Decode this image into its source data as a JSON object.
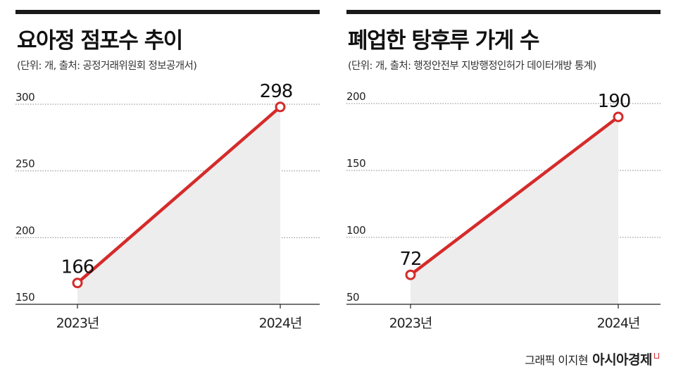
{
  "charts": [
    {
      "title": "요아정 점포수 추이",
      "subtitle": "(단위: 개, 출처: 공정거래위원회 정보공개서)"
    },
    {
      "title": "폐업한 탕후루 가게 수",
      "subtitle": "(단위: 개, 출처: 행정안전부 지방행정인허가 데이터개방 통계)"
    }
  ],
  "credit": {
    "author": "그래픽 이지현",
    "brand": "아시아경제"
  },
  "colors": {
    "line": "#d52b2b",
    "fill": "#ededed",
    "grid": "#888888",
    "bar": "#1a1a1a"
  },
  "chart_data": [
    {
      "type": "area",
      "title": "요아정 점포수 추이",
      "categories": [
        "2023년",
        "2024년"
      ],
      "values": [
        166,
        298
      ],
      "data_labels": [
        "166",
        "298"
      ],
      "yticks": [
        150,
        200,
        250,
        300
      ],
      "ylim": [
        150,
        300
      ],
      "grid": true
    },
    {
      "type": "area",
      "title": "폐업한 탕후루 가게 수",
      "categories": [
        "2023년",
        "2024년"
      ],
      "values": [
        72,
        190
      ],
      "data_labels": [
        "72",
        "190"
      ],
      "yticks": [
        50,
        100,
        150,
        200
      ],
      "ylim": [
        50,
        200
      ],
      "grid": true
    }
  ]
}
